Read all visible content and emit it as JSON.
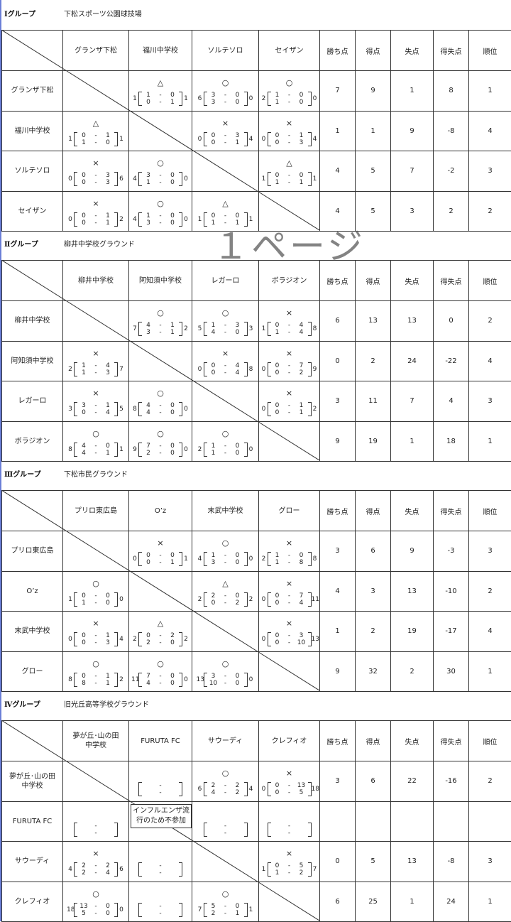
{
  "stat_headers": [
    "勝ち点",
    "得点",
    "失点",
    "得失点",
    "順位"
  ],
  "watermark": "１ページ",
  "note": "インフルエンザ流行のため不参加",
  "groups": [
    {
      "name": "Ⅰグループ",
      "venue": "下松スポーツ公園球技場",
      "teams": [
        "グランザ下松",
        "福川中学校",
        "ソルテソロ",
        "セイザン"
      ],
      "rows": [
        {
          "cells": [
            null,
            {
              "m": "△",
              "l": "1",
              "s": [
                [
                  "1",
                  "0"
                ],
                [
                  "0",
                  "1"
                ]
              ],
              "r": "1"
            },
            {
              "m": "○",
              "l": "6",
              "s": [
                [
                  "3",
                  "0"
                ],
                [
                  "3",
                  "0"
                ]
              ],
              "r": "0"
            },
            {
              "m": "○",
              "l": "2",
              "s": [
                [
                  "1",
                  "0"
                ],
                [
                  "1",
                  "0"
                ]
              ],
              "r": "0"
            }
          ],
          "stats": [
            "7",
            "9",
            "1",
            "8",
            "1"
          ]
        },
        {
          "cells": [
            {
              "m": "△",
              "l": "1",
              "s": [
                [
                  "0",
                  "1"
                ],
                [
                  "1",
                  "0"
                ]
              ],
              "r": "1"
            },
            null,
            {
              "m": "×",
              "l": "0",
              "s": [
                [
                  "0",
                  "3"
                ],
                [
                  "0",
                  "1"
                ]
              ],
              "r": "4"
            },
            {
              "m": "×",
              "l": "0",
              "s": [
                [
                  "0",
                  "1"
                ],
                [
                  "0",
                  "3"
                ]
              ],
              "r": "4"
            }
          ],
          "stats": [
            "1",
            "1",
            "9",
            "-8",
            "4"
          ]
        },
        {
          "cells": [
            {
              "m": "×",
              "l": "0",
              "s": [
                [
                  "0",
                  "3"
                ],
                [
                  "0",
                  "3"
                ]
              ],
              "r": "6"
            },
            {
              "m": "○",
              "l": "4",
              "s": [
                [
                  "3",
                  "0"
                ],
                [
                  "1",
                  "0"
                ]
              ],
              "r": "0"
            },
            null,
            {
              "m": "△",
              "l": "1",
              "s": [
                [
                  "0",
                  "0"
                ],
                [
                  "1",
                  "1"
                ]
              ],
              "r": "1"
            }
          ],
          "stats": [
            "4",
            "5",
            "7",
            "-2",
            "3"
          ]
        },
        {
          "cells": [
            {
              "m": "×",
              "l": "0",
              "s": [
                [
                  "0",
                  "1"
                ],
                [
                  "0",
                  "1"
                ]
              ],
              "r": "2"
            },
            {
              "m": "○",
              "l": "4",
              "s": [
                [
                  "1",
                  "0"
                ],
                [
                  "3",
                  "0"
                ]
              ],
              "r": "0"
            },
            {
              "m": "△",
              "l": "1",
              "s": [
                [
                  "0",
                  "0"
                ],
                [
                  "1",
                  "1"
                ]
              ],
              "r": "1"
            },
            null
          ],
          "stats": [
            "4",
            "5",
            "3",
            "2",
            "2"
          ]
        }
      ]
    },
    {
      "name": "Ⅱグループ",
      "venue": "柳井中学校グラウンド",
      "teams": [
        "柳井中学校",
        "阿知須中学校",
        "レガーロ",
        "ボラジオン"
      ],
      "rows": [
        {
          "cells": [
            null,
            {
              "m": "○",
              "l": "7",
              "s": [
                [
                  "4",
                  "1"
                ],
                [
                  "3",
                  "1"
                ]
              ],
              "r": "2"
            },
            {
              "m": "○",
              "l": "5",
              "s": [
                [
                  "1",
                  "3"
                ],
                [
                  "4",
                  "0"
                ]
              ],
              "r": "3"
            },
            {
              "m": "×",
              "l": "1",
              "s": [
                [
                  "0",
                  "4"
                ],
                [
                  "1",
                  "4"
                ]
              ],
              "r": "8"
            }
          ],
          "stats": [
            "6",
            "13",
            "13",
            "0",
            "2"
          ]
        },
        {
          "cells": [
            {
              "m": "×",
              "l": "2",
              "s": [
                [
                  "1",
                  "4"
                ],
                [
                  "1",
                  "3"
                ]
              ],
              "r": "7"
            },
            null,
            {
              "m": "×",
              "l": "0",
              "s": [
                [
                  "0",
                  "4"
                ],
                [
                  "0",
                  "4"
                ]
              ],
              "r": "8"
            },
            {
              "m": "×",
              "l": "0",
              "s": [
                [
                  "0",
                  "7"
                ],
                [
                  "0",
                  "2"
                ]
              ],
              "r": "9"
            }
          ],
          "stats": [
            "0",
            "2",
            "24",
            "-22",
            "4"
          ]
        },
        {
          "cells": [
            {
              "m": "×",
              "l": "3",
              "s": [
                [
                  "3",
                  "1"
                ],
                [
                  "0",
                  "4"
                ]
              ],
              "r": "5"
            },
            {
              "m": "○",
              "l": "8",
              "s": [
                [
                  "4",
                  "0"
                ],
                [
                  "4",
                  "0"
                ]
              ],
              "r": "0"
            },
            null,
            {
              "m": "×",
              "l": "0",
              "s": [
                [
                  "0",
                  "1"
                ],
                [
                  "0",
                  "1"
                ]
              ],
              "r": "2"
            }
          ],
          "stats": [
            "3",
            "11",
            "7",
            "4",
            "3"
          ]
        },
        {
          "cells": [
            {
              "m": "○",
              "l": "8",
              "s": [
                [
                  "4",
                  "0"
                ],
                [
                  "4",
                  "1"
                ]
              ],
              "r": "1"
            },
            {
              "m": "○",
              "l": "9",
              "s": [
                [
                  "7",
                  "0"
                ],
                [
                  "2",
                  "0"
                ]
              ],
              "r": "0"
            },
            {
              "m": "○",
              "l": "2",
              "s": [
                [
                  "1",
                  "0"
                ],
                [
                  "1",
                  "0"
                ]
              ],
              "r": "0"
            },
            null
          ],
          "stats": [
            "9",
            "19",
            "1",
            "18",
            "1"
          ]
        }
      ]
    },
    {
      "name": "Ⅲグループ",
      "venue": "下松市民グラウンド",
      "teams": [
        "プリロ東広島",
        "O’z",
        "末武中学校",
        "グロー"
      ],
      "rows": [
        {
          "cells": [
            null,
            {
              "m": "×",
              "l": "0",
              "s": [
                [
                  "0",
                  "0"
                ],
                [
                  "0",
                  "1"
                ]
              ],
              "r": "1"
            },
            {
              "m": "○",
              "l": "4",
              "s": [
                [
                  "1",
                  "0"
                ],
                [
                  "3",
                  "0"
                ]
              ],
              "r": "0"
            },
            {
              "m": "×",
              "l": "2",
              "s": [
                [
                  "1",
                  "0"
                ],
                [
                  "1",
                  "8"
                ]
              ],
              "r": "8"
            }
          ],
          "stats": [
            "3",
            "6",
            "9",
            "-3",
            "3"
          ]
        },
        {
          "cells": [
            {
              "m": "○",
              "l": "1",
              "s": [
                [
                  "0",
                  "0"
                ],
                [
                  "1",
                  "0"
                ]
              ],
              "r": "0"
            },
            null,
            {
              "m": "△",
              "l": "2",
              "s": [
                [
                  "2",
                  "0"
                ],
                [
                  "0",
                  "2"
                ]
              ],
              "r": "2"
            },
            {
              "m": "×",
              "l": "0",
              "s": [
                [
                  "0",
                  "7"
                ],
                [
                  "0",
                  "4"
                ]
              ],
              "r": "11"
            }
          ],
          "stats": [
            "4",
            "3",
            "13",
            "-10",
            "2"
          ]
        },
        {
          "cells": [
            {
              "m": "×",
              "l": "0",
              "s": [
                [
                  "0",
                  "1"
                ],
                [
                  "0",
                  "3"
                ]
              ],
              "r": "4"
            },
            {
              "m": "△",
              "l": "2",
              "s": [
                [
                  "0",
                  "2"
                ],
                [
                  "2",
                  "0"
                ]
              ],
              "r": "2"
            },
            null,
            {
              "m": "×",
              "l": "0",
              "s": [
                [
                  "0",
                  "3"
                ],
                [
                  "0",
                  "10"
                ]
              ],
              "r": "13"
            }
          ],
          "stats": [
            "1",
            "2",
            "19",
            "-17",
            "4"
          ]
        },
        {
          "cells": [
            {
              "m": "○",
              "l": "8",
              "s": [
                [
                  "0",
                  "1"
                ],
                [
                  "8",
                  "1"
                ]
              ],
              "r": "2"
            },
            {
              "m": "○",
              "l": "11",
              "s": [
                [
                  "7",
                  "0"
                ],
                [
                  "4",
                  "0"
                ]
              ],
              "r": "0"
            },
            {
              "m": "○",
              "l": "13",
              "s": [
                [
                  "3",
                  "0"
                ],
                [
                  "10",
                  "0"
                ]
              ],
              "r": "0"
            },
            null
          ],
          "stats": [
            "9",
            "32",
            "2",
            "30",
            "1"
          ]
        }
      ]
    },
    {
      "name": "Ⅳグループ",
      "venue": "旧光丘高等学校グラウンド",
      "teams": [
        "夢が丘･山の田\n中学校",
        "FURUTA  FC",
        "サウーディ",
        "クレフィオ"
      ],
      "rows": [
        {
          "cells": [
            null,
            {
              "m": "",
              "l": "",
              "s": [
                [
                  "",
                  ""
                ],
                [
                  "",
                  ""
                ]
              ],
              "r": ""
            },
            {
              "m": "○",
              "l": "6",
              "s": [
                [
                  "2",
                  "2"
                ],
                [
                  "4",
                  "2"
                ]
              ],
              "r": "4"
            },
            {
              "m": "×",
              "l": "0",
              "s": [
                [
                  "0",
                  "13"
                ],
                [
                  "0",
                  "5"
                ]
              ],
              "r": "18"
            }
          ],
          "stats": [
            "3",
            "6",
            "22",
            "-16",
            "2"
          ]
        },
        {
          "cells": [
            {
              "m": "",
              "l": "",
              "s": [
                [
                  "",
                  ""
                ],
                [
                  "",
                  ""
                ]
              ],
              "r": ""
            },
            null,
            {
              "m": "",
              "l": "",
              "s": [
                [
                  "",
                  ""
                ],
                [
                  "",
                  ""
                ]
              ],
              "r": ""
            },
            {
              "m": "",
              "l": "",
              "s": [
                [
                  "",
                  ""
                ],
                [
                  "",
                  ""
                ]
              ],
              "r": ""
            }
          ],
          "stats": [
            "",
            "",
            "",
            "",
            ""
          ]
        },
        {
          "cells": [
            {
              "m": "×",
              "l": "4",
              "s": [
                [
                  "2",
                  "2"
                ],
                [
                  "2",
                  "4"
                ]
              ],
              "r": "6"
            },
            {
              "m": "",
              "l": "",
              "s": [
                [
                  "",
                  ""
                ],
                [
                  "",
                  ""
                ]
              ],
              "r": ""
            },
            null,
            {
              "m": "×",
              "l": "1",
              "s": [
                [
                  "0",
                  "5"
                ],
                [
                  "1",
                  "2"
                ]
              ],
              "r": "7"
            }
          ],
          "stats": [
            "0",
            "5",
            "13",
            "-8",
            "3"
          ]
        },
        {
          "cells": [
            {
              "m": "○",
              "l": "18",
              "s": [
                [
                  "13",
                  "0"
                ],
                [
                  "5",
                  "0"
                ]
              ],
              "r": "0"
            },
            {
              "m": "",
              "l": "",
              "s": [
                [
                  "",
                  ""
                ],
                [
                  "",
                  ""
                ]
              ],
              "r": ""
            },
            {
              "m": "○",
              "l": "7",
              "s": [
                [
                  "5",
                  "0"
                ],
                [
                  "2",
                  "1"
                ]
              ],
              "r": "1"
            },
            null
          ],
          "stats": [
            "6",
            "25",
            "1",
            "24",
            "1"
          ]
        }
      ]
    }
  ]
}
